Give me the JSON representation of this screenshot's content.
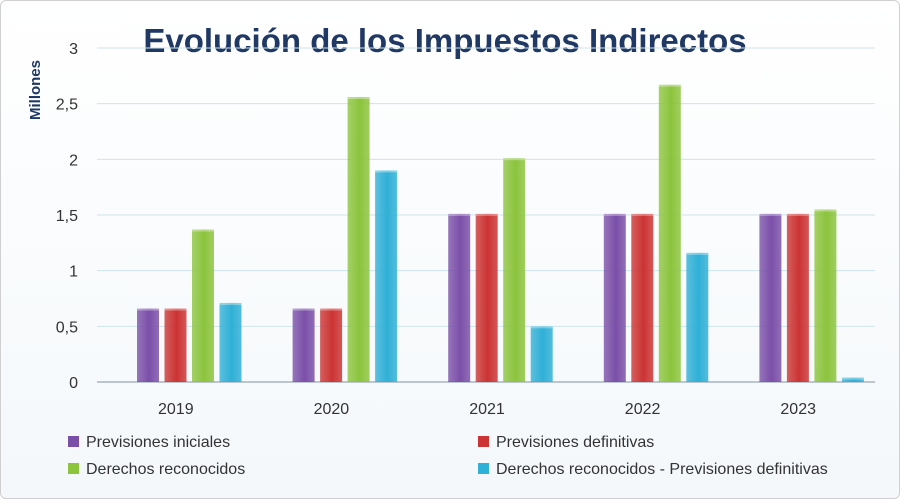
{
  "chart_data": {
    "type": "bar",
    "title": "Evolución de los Impuestos Indirectos",
    "xlabel": "",
    "ylabel": "Millones",
    "ylim": [
      0,
      3
    ],
    "yticks": [
      0,
      0.5,
      1,
      1.5,
      2,
      2.5,
      3
    ],
    "ytick_labels": [
      "0",
      "0,5",
      "1",
      "1,5",
      "2",
      "2,5",
      "3"
    ],
    "grid": true,
    "legend_position": "bottom",
    "categories": [
      "2019",
      "2020",
      "2021",
      "2022",
      "2023"
    ],
    "series": [
      {
        "name": "Previsiones iniciales",
        "color": "#7b4fa8",
        "values": [
          0.66,
          0.66,
          1.51,
          1.51,
          1.51
        ]
      },
      {
        "name": "Previsiones definitivas",
        "color": "#cc3333",
        "values": [
          0.66,
          0.66,
          1.51,
          1.51,
          1.51
        ]
      },
      {
        "name": "Derechos  reconocidos",
        "color": "#8cc43c",
        "values": [
          1.37,
          2.56,
          2.01,
          2.67,
          1.55
        ]
      },
      {
        "name": "Derechos reconocidos - Previsiones definitivas",
        "color": "#2fb0d6",
        "values": [
          0.71,
          1.9,
          0.5,
          1.16,
          0.04
        ]
      }
    ]
  }
}
